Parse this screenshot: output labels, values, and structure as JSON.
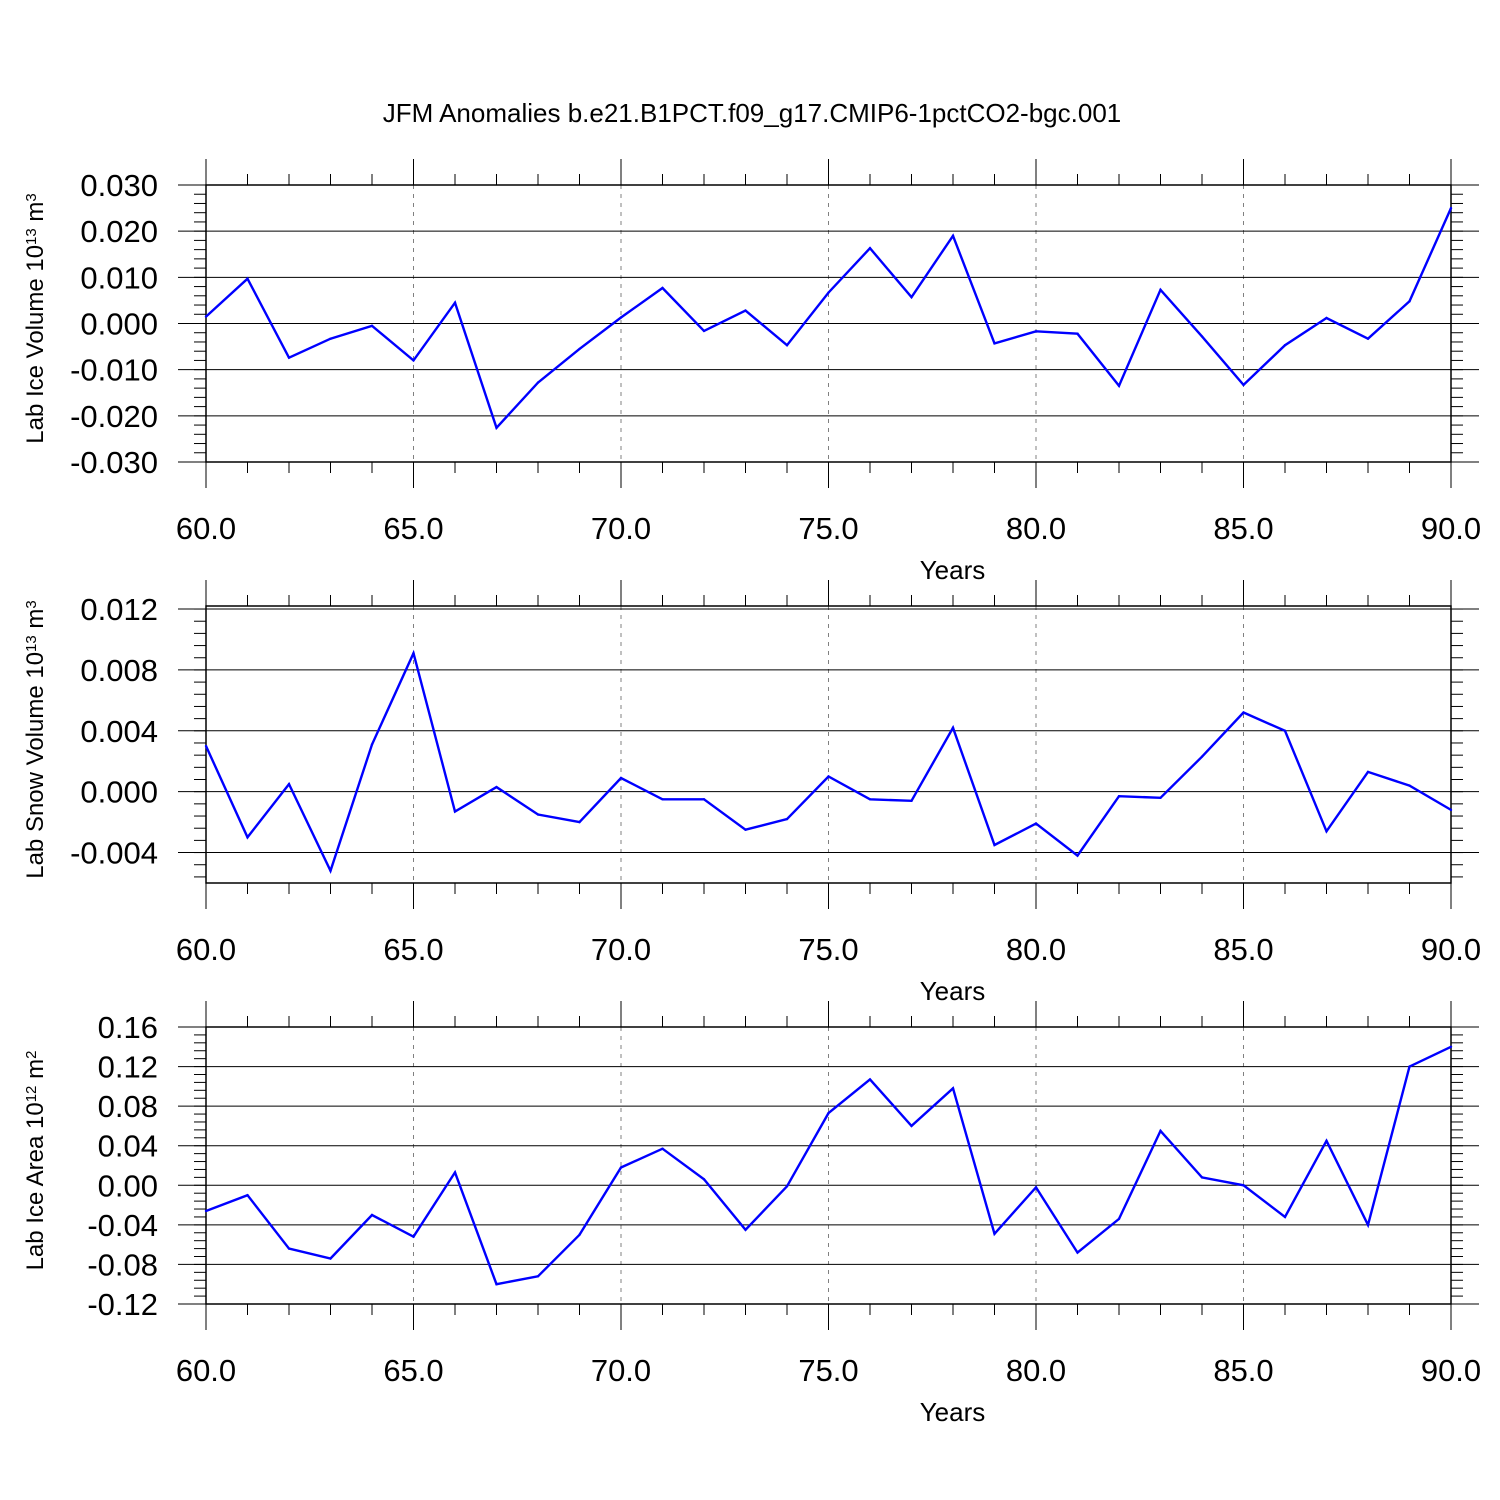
{
  "title": "JFM Anomalies b.e21.B1PCT.f09_g17.CMIP6-1pctCO2-bgc.001",
  "colors": {
    "line": "#0000ff",
    "axis": "#000000",
    "grid": "#808080"
  },
  "chart_data": [
    {
      "type": "line",
      "xlabel": "Years",
      "ylabel": {
        "prefix": "Lab Ice Volume 10",
        "exp": "13",
        "unit": " m",
        "unit_exp": "3"
      },
      "xlim": [
        60,
        90
      ],
      "ylim": [
        -0.03,
        0.03
      ],
      "xticks": [
        60,
        65,
        70,
        75,
        80,
        85,
        90
      ],
      "xtick_labels": [
        "60.0",
        "65.0",
        "70.0",
        "75.0",
        "80.0",
        "85.0",
        "90.0"
      ],
      "yticks": [
        0.03,
        0.02,
        0.01,
        0.0,
        -0.01,
        -0.02,
        -0.03
      ],
      "ytick_labels": [
        "0.030",
        "0.020",
        "0.010",
        "0.000",
        "-0.010",
        "-0.020",
        "-0.030"
      ],
      "grid": "vertical-dashed",
      "x": [
        60,
        61,
        62,
        63,
        64,
        65,
        66,
        67,
        68,
        69,
        70,
        71,
        72,
        73,
        74,
        75,
        76,
        77,
        78,
        79,
        80,
        81,
        82,
        83,
        84,
        85,
        86,
        87,
        88,
        89,
        90
      ],
      "y": [
        0.0015,
        0.0097,
        -0.0074,
        -0.0033,
        -0.0005,
        -0.008,
        0.0045,
        -0.0226,
        -0.0128,
        -0.0055,
        0.0013,
        0.0077,
        -0.0016,
        0.0028,
        -0.0047,
        0.0067,
        0.0163,
        0.0057,
        0.019,
        -0.0043,
        -0.0017,
        -0.0022,
        -0.0135,
        0.0073,
        -0.0028,
        -0.0133,
        -0.0047,
        0.0012,
        -0.0033,
        0.0048,
        0.025
      ]
    },
    {
      "type": "line",
      "xlabel": "Years",
      "ylabel": {
        "prefix": "Lab Snow Volume 10",
        "exp": "13",
        "unit": " m",
        "unit_exp": "3"
      },
      "xlim": [
        60,
        90
      ],
      "ylim": [
        -0.006,
        0.0122
      ],
      "xticks": [
        60,
        65,
        70,
        75,
        80,
        85,
        90
      ],
      "xtick_labels": [
        "60.0",
        "65.0",
        "70.0",
        "75.0",
        "80.0",
        "85.0",
        "90.0"
      ],
      "yticks": [
        0.012,
        0.008,
        0.004,
        0.0,
        -0.004
      ],
      "ytick_labels": [
        "0.012",
        "0.008",
        "0.004",
        "0.000",
        "-0.004"
      ],
      "grid": "vertical-dashed",
      "x": [
        60,
        61,
        62,
        63,
        64,
        65,
        66,
        67,
        68,
        69,
        70,
        71,
        72,
        73,
        74,
        75,
        76,
        77,
        78,
        79,
        80,
        81,
        82,
        83,
        84,
        85,
        86,
        87,
        88,
        89,
        90
      ],
      "y": [
        0.003,
        -0.003,
        0.0005,
        -0.0052,
        0.0031,
        0.0091,
        -0.0013,
        0.0003,
        -0.0015,
        -0.002,
        0.0009,
        -0.0005,
        -0.0005,
        -0.0025,
        -0.0018,
        0.001,
        -0.0005,
        -0.0006,
        0.0042,
        -0.0035,
        -0.0021,
        -0.0042,
        -0.0003,
        -0.0004,
        0.0023,
        0.0052,
        0.004,
        -0.0026,
        0.0013,
        0.0004,
        -0.0012
      ]
    },
    {
      "type": "line",
      "xlabel": "Years",
      "ylabel": {
        "prefix": "Lab Ice Area 10",
        "exp": "12",
        "unit": " m",
        "unit_exp": "2"
      },
      "xlim": [
        60,
        90
      ],
      "ylim": [
        -0.12,
        0.16
      ],
      "xticks": [
        60,
        65,
        70,
        75,
        80,
        85,
        90
      ],
      "xtick_labels": [
        "60.0",
        "65.0",
        "70.0",
        "75.0",
        "80.0",
        "85.0",
        "90.0"
      ],
      "yticks": [
        0.16,
        0.12,
        0.08,
        0.04,
        0.0,
        -0.04,
        -0.08,
        -0.12
      ],
      "ytick_labels": [
        "0.16",
        "0.12",
        "0.08",
        "0.04",
        "0.00",
        "-0.04",
        "-0.08",
        "-0.12"
      ],
      "grid": "vertical-dashed",
      "x": [
        60,
        61,
        62,
        63,
        64,
        65,
        66,
        67,
        68,
        69,
        70,
        71,
        72,
        73,
        74,
        75,
        76,
        77,
        78,
        79,
        80,
        81,
        82,
        83,
        84,
        85,
        86,
        87,
        88,
        89,
        90
      ],
      "y": [
        -0.026,
        -0.01,
        -0.064,
        -0.074,
        -0.03,
        -0.052,
        0.013,
        -0.1,
        -0.092,
        -0.05,
        0.018,
        0.037,
        0.006,
        -0.045,
        -0.001,
        0.073,
        0.107,
        0.06,
        0.098,
        -0.049,
        -0.002,
        -0.068,
        -0.034,
        0.055,
        0.008,
        0.0,
        -0.032,
        0.045,
        -0.04,
        0.12,
        0.14
      ]
    }
  ]
}
